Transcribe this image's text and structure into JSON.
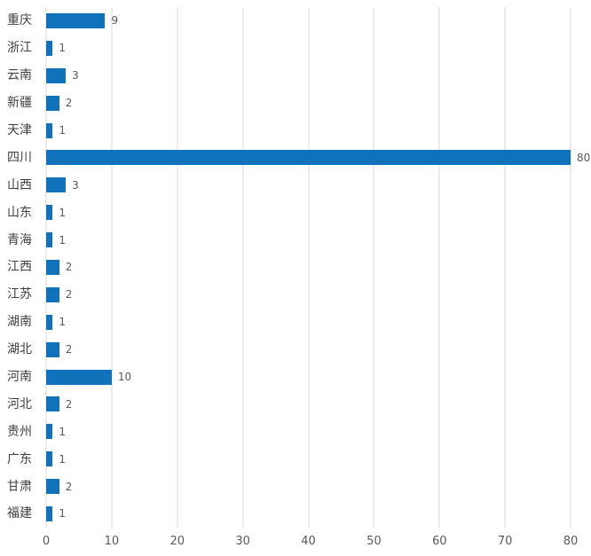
{
  "chart_data": {
    "type": "bar",
    "orientation": "horizontal",
    "title": "",
    "xlabel": "",
    "ylabel": "",
    "categories": [
      "重庆",
      "浙江",
      "云南",
      "新疆",
      "天津",
      "四川",
      "山西",
      "山东",
      "青海",
      "江西",
      "江苏",
      "湖南",
      "湖北",
      "河南",
      "河北",
      "贵州",
      "广东",
      "甘肃",
      "福建"
    ],
    "values": [
      9,
      1,
      3,
      2,
      1,
      80,
      3,
      1,
      1,
      2,
      2,
      1,
      2,
      10,
      2,
      1,
      1,
      2,
      1
    ],
    "x_ticks": [
      0,
      10,
      20,
      30,
      40,
      50,
      60,
      70,
      80
    ],
    "xlim": [
      0,
      80
    ],
    "grid": true,
    "legend": "none",
    "data_labels": true,
    "colors": {
      "bar": "#1072BA",
      "gridline": "#D9D9D9",
      "category_label": "#404040",
      "value_label": "#595959",
      "axis_tick_label": "#595959",
      "background": "#FFFFFF"
    }
  }
}
